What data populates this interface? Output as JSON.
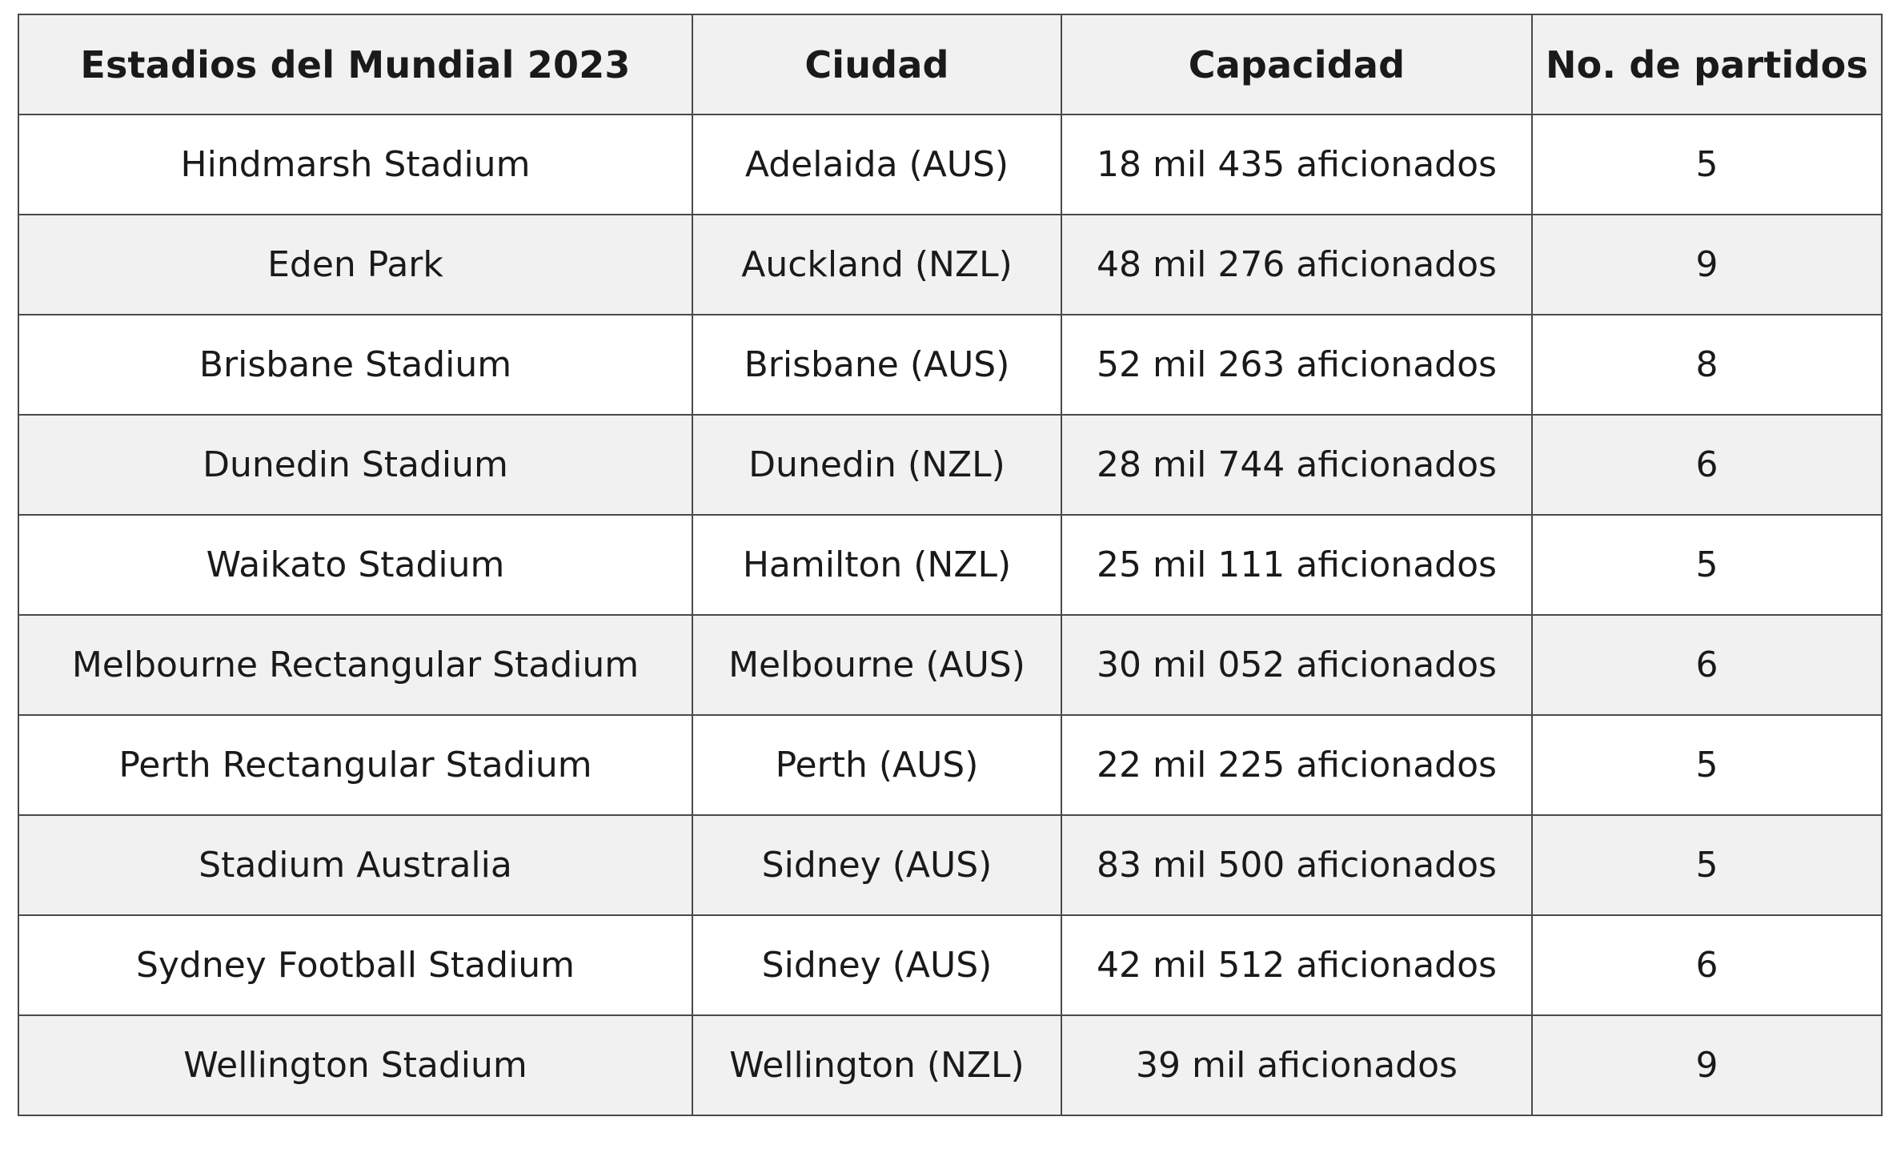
{
  "table": {
    "headers": [
      "Estadios del Mundial 2023",
      "Ciudad",
      "Capacidad",
      "No. de partidos"
    ],
    "rows": [
      [
        "Hindmarsh Stadium",
        "Adelaida (AUS)",
        "18 mil 435 aficionados",
        "5"
      ],
      [
        "Eden Park",
        "Auckland (NZL)",
        "48 mil 276 aficionados",
        "9"
      ],
      [
        "Brisbane Stadium",
        "Brisbane (AUS)",
        "52 mil 263 aficionados",
        "8"
      ],
      [
        "Dunedin Stadium",
        "Dunedin (NZL)",
        "28 mil 744 aficionados",
        "6"
      ],
      [
        "Waikato Stadium",
        "Hamilton (NZL)",
        "25 mil 111 aficionados",
        "5"
      ],
      [
        "Melbourne Rectangular Stadium",
        "Melbourne (AUS)",
        "30 mil 052 aficionados",
        "6"
      ],
      [
        "Perth Rectangular Stadium",
        "Perth (AUS)",
        "22 mil 225 aficionados",
        "5"
      ],
      [
        "Stadium Australia",
        "Sidney (AUS)",
        "83 mil 500 aficionados",
        "5"
      ],
      [
        "Sydney Football Stadium",
        "Sidney (AUS)",
        "42 mil 512 aficionados",
        "6"
      ],
      [
        "Wellington Stadium",
        "Wellington (NZL)",
        "39 mil aficionados",
        "9"
      ]
    ]
  }
}
